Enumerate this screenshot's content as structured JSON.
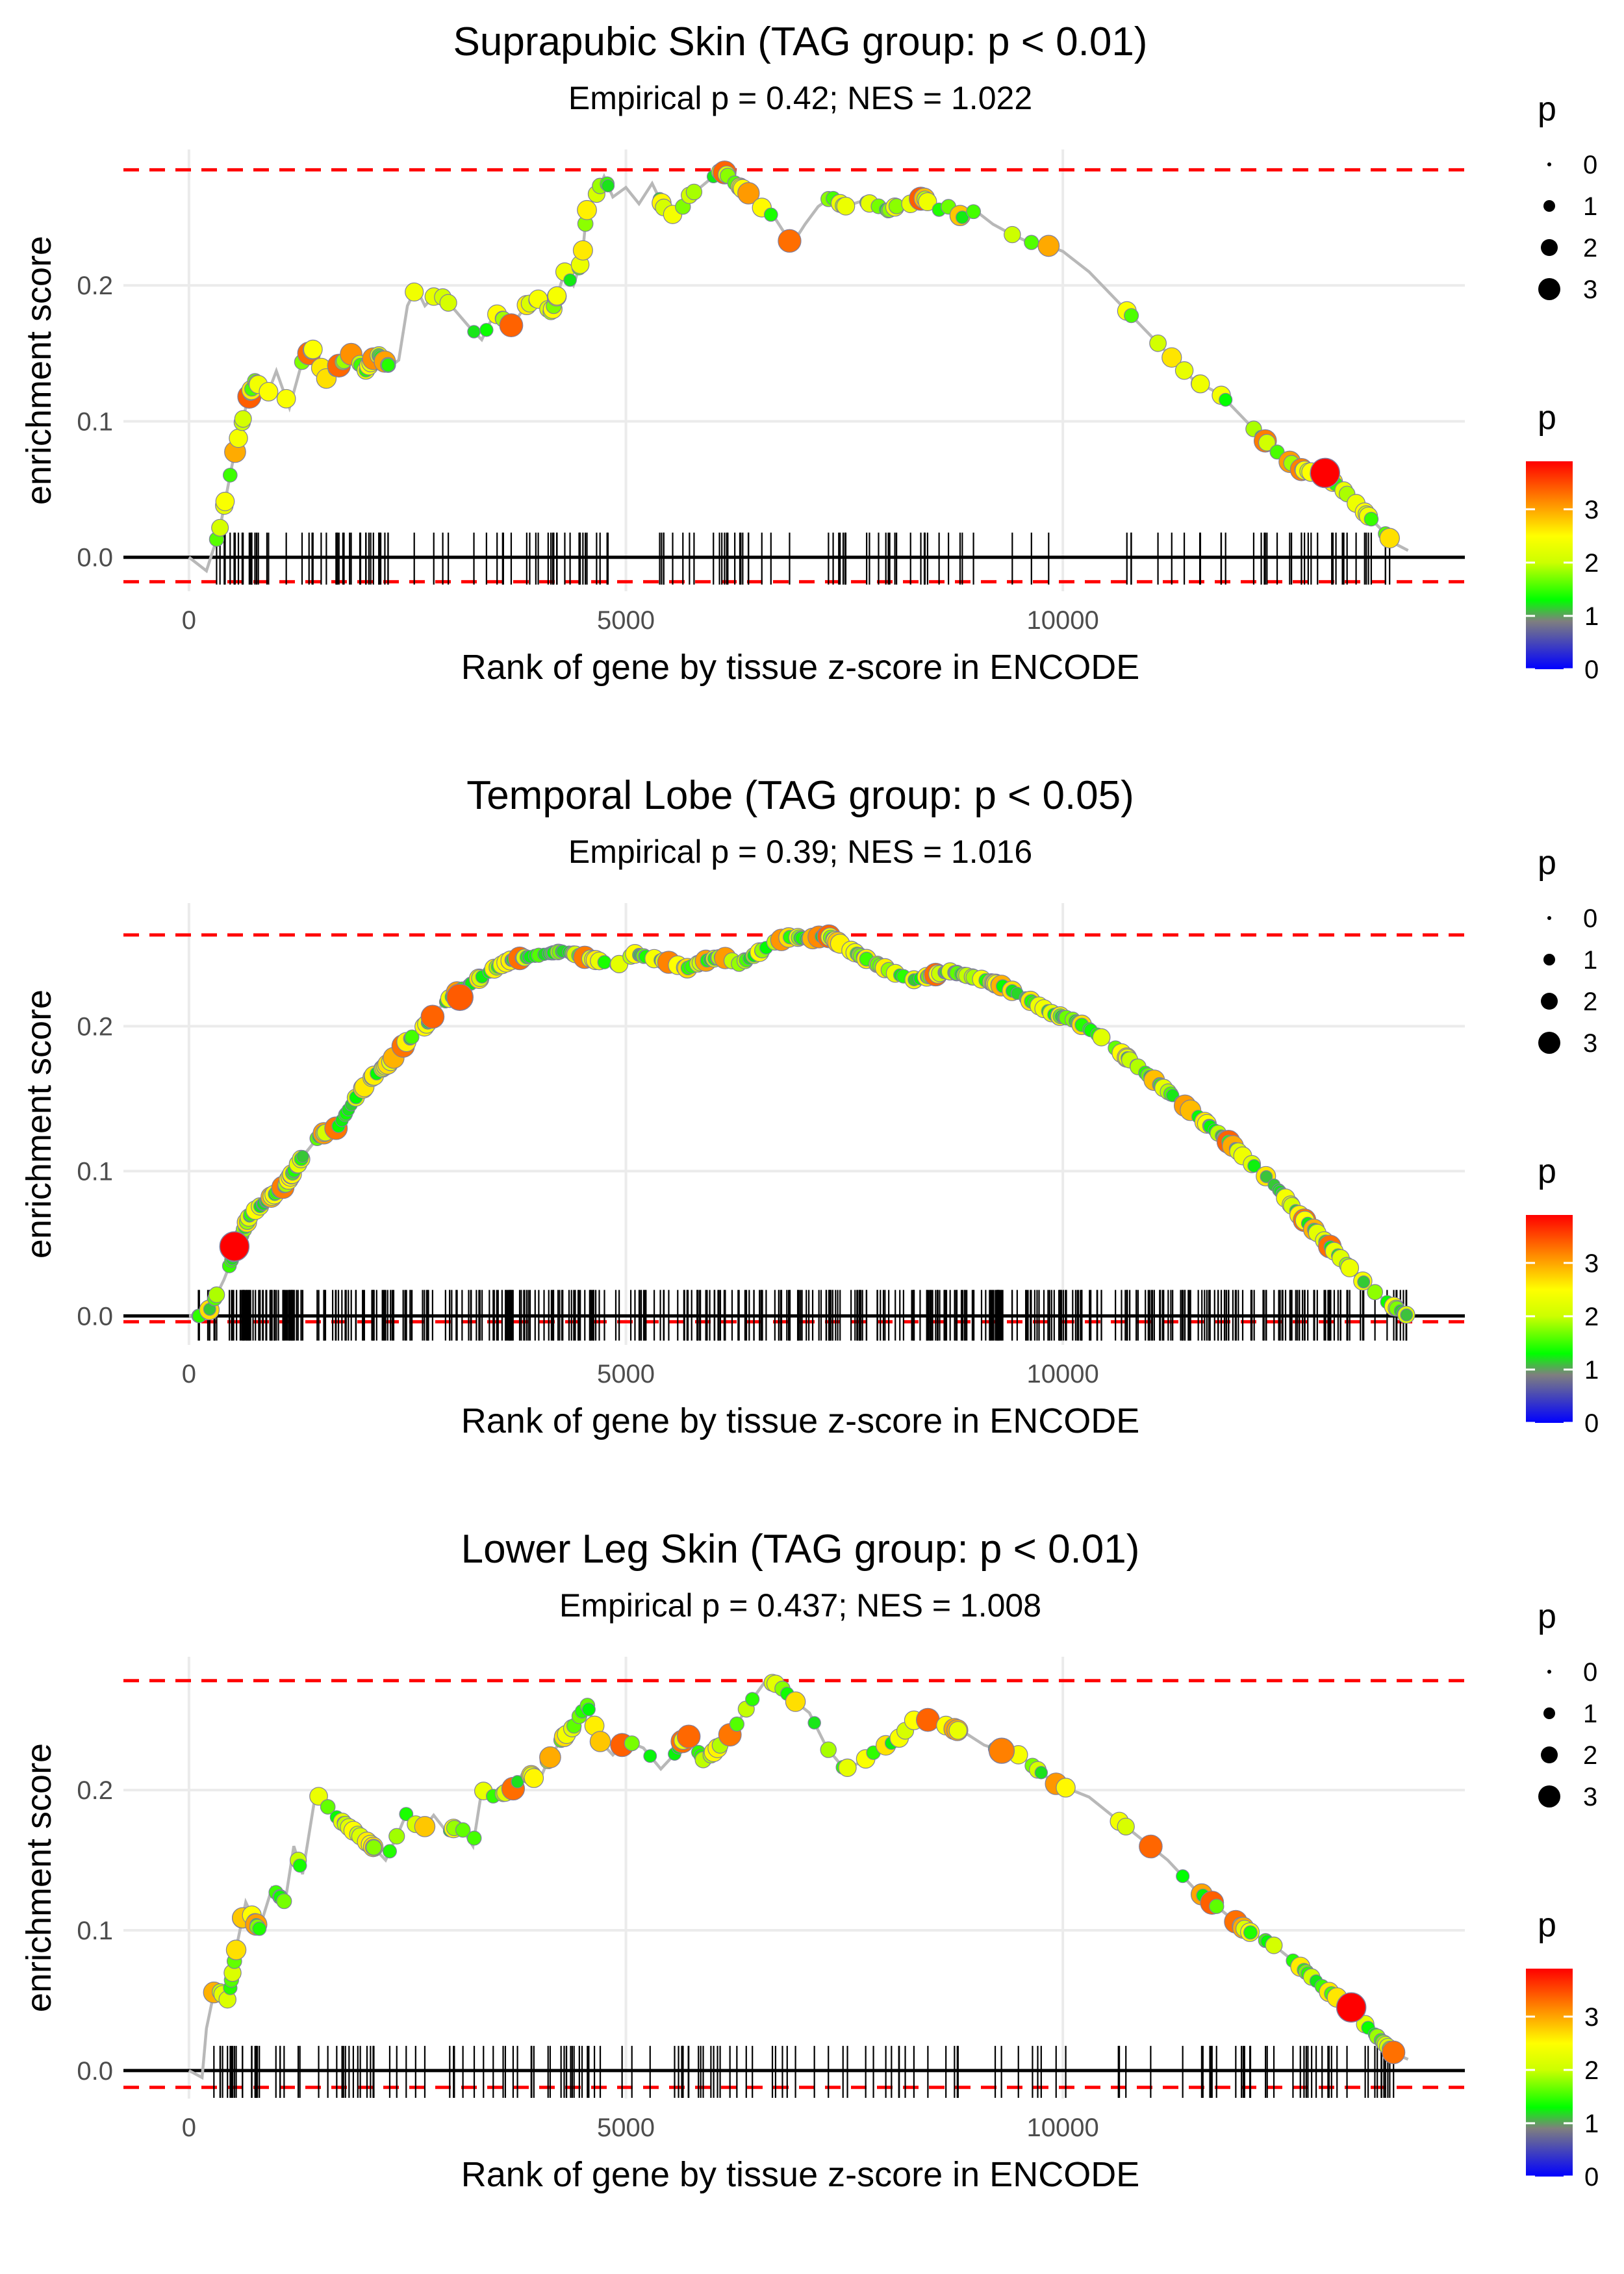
{
  "figure": {
    "x_axis_label": "Rank of gene by tissue z-score in ENCODE",
    "y_axis_label": "enrichment score",
    "legend_size_title": "p",
    "legend_color_title": "p",
    "colors": {
      "gsea_line": "#b8b8b8",
      "threshold_line": "#ff0000",
      "zero_line": "#000000",
      "rug": "#000000",
      "grid": "#ebebeb",
      "point_border": "#7f7f9f"
    },
    "color_scale": {
      "stops": [
        {
          "value": 0,
          "color": "#0000ff"
        },
        {
          "value": 0.9,
          "color": "#7f7f7f"
        },
        {
          "value": 1.3,
          "color": "#00ff00"
        },
        {
          "value": 2.0,
          "color": "#ccff00"
        },
        {
          "value": 2.5,
          "color": "#ffff00"
        },
        {
          "value": 3.2,
          "color": "#ff8000"
        },
        {
          "value": 3.9,
          "color": "#ff0000"
        }
      ],
      "ticks": [
        "0",
        "1",
        "2",
        "3"
      ]
    },
    "size_legend": [
      "0",
      "1",
      "2",
      "3"
    ]
  },
  "chart_data": [
    {
      "type": "line",
      "title": "Suprapubic Skin (TAG group: p < 0.01)",
      "subtitle": "Empirical p = 0.42; NES = 1.022",
      "xlabel": "Rank of gene by tissue z-score in ENCODE",
      "ylabel": "enrichment score",
      "xlim": [
        -750,
        14600
      ],
      "ylim": [
        -0.025,
        0.3
      ],
      "x_ticks": [
        0,
        5000,
        10000
      ],
      "x_tick_labels": [
        "0",
        "5000",
        "10000"
      ],
      "y_ticks": [
        0.0,
        0.1,
        0.2
      ],
      "y_tick_labels": [
        "0.0",
        "0.1",
        "0.2"
      ],
      "max_es": 0.285,
      "min_es": -0.018,
      "n_genes": 14000,
      "curve": [
        [
          0,
          0.0
        ],
        [
          200,
          -0.01
        ],
        [
          350,
          0.02
        ],
        [
          500,
          0.07
        ],
        [
          650,
          0.11
        ],
        [
          750,
          0.13
        ],
        [
          900,
          0.12
        ],
        [
          1000,
          0.137
        ],
        [
          1150,
          0.11
        ],
        [
          1300,
          0.145
        ],
        [
          1450,
          0.155
        ],
        [
          1550,
          0.13
        ],
        [
          1700,
          0.14
        ],
        [
          1900,
          0.152
        ],
        [
          2000,
          0.135
        ],
        [
          2150,
          0.15
        ],
        [
          2300,
          0.14
        ],
        [
          2400,
          0.145
        ],
        [
          2500,
          0.185
        ],
        [
          2600,
          0.198
        ],
        [
          2700,
          0.185
        ],
        [
          2850,
          0.195
        ],
        [
          3000,
          0.185
        ],
        [
          3200,
          0.17
        ],
        [
          3350,
          0.16
        ],
        [
          3500,
          0.18
        ],
        [
          3700,
          0.17
        ],
        [
          3850,
          0.185
        ],
        [
          4000,
          0.19
        ],
        [
          4150,
          0.18
        ],
        [
          4300,
          0.21
        ],
        [
          4400,
          0.2
        ],
        [
          4500,
          0.22
        ],
        [
          4550,
          0.255
        ],
        [
          4650,
          0.265
        ],
        [
          4750,
          0.28
        ],
        [
          4850,
          0.265
        ],
        [
          5000,
          0.272
        ],
        [
          5150,
          0.26
        ],
        [
          5300,
          0.275
        ],
        [
          5450,
          0.255
        ],
        [
          5600,
          0.25
        ],
        [
          5700,
          0.265
        ],
        [
          5850,
          0.272
        ],
        [
          6000,
          0.28
        ],
        [
          6100,
          0.285
        ],
        [
          6250,
          0.275
        ],
        [
          6400,
          0.268
        ],
        [
          6500,
          0.26
        ],
        [
          6700,
          0.25
        ],
        [
          6900,
          0.23
        ],
        [
          7050,
          0.245
        ],
        [
          7200,
          0.258
        ],
        [
          7350,
          0.265
        ],
        [
          7500,
          0.258
        ],
        [
          7700,
          0.262
        ],
        [
          7900,
          0.258
        ],
        [
          8000,
          0.255
        ],
        [
          8150,
          0.26
        ],
        [
          8300,
          0.26
        ],
        [
          8400,
          0.265
        ],
        [
          8550,
          0.255
        ],
        [
          8700,
          0.258
        ],
        [
          8850,
          0.25
        ],
        [
          9000,
          0.255
        ],
        [
          9200,
          0.245
        ],
        [
          9400,
          0.238
        ],
        [
          9600,
          0.232
        ],
        [
          9800,
          0.23
        ],
        [
          10000,
          0.225
        ],
        [
          10300,
          0.21
        ],
        [
          10600,
          0.19
        ],
        [
          10900,
          0.17
        ],
        [
          11200,
          0.15
        ],
        [
          11500,
          0.13
        ],
        [
          11800,
          0.12
        ],
        [
          12100,
          0.1
        ],
        [
          12400,
          0.08
        ],
        [
          12700,
          0.065
        ],
        [
          13000,
          0.06
        ],
        [
          13200,
          0.05
        ],
        [
          13500,
          0.03
        ],
        [
          13800,
          0.01
        ],
        [
          13950,
          0.005
        ]
      ],
      "highlighted_points": [
        {
          "x": 13000,
          "y": 0.062,
          "p": 3.9
        }
      ],
      "rug_density": "sparse",
      "rug_seed": 11
    },
    {
      "type": "line",
      "title": "Temporal Lobe (TAG group: p < 0.05)",
      "subtitle": "Empirical p = 0.39; NES = 1.016",
      "xlabel": "Rank of gene by tissue z-score in ENCODE",
      "ylabel": "enrichment score",
      "xlim": [
        -750,
        14600
      ],
      "ylim": [
        -0.02,
        0.285
      ],
      "x_ticks": [
        0,
        5000,
        10000
      ],
      "x_tick_labels": [
        "0",
        "5000",
        "10000"
      ],
      "y_ticks": [
        0.0,
        0.1,
        0.2
      ],
      "y_tick_labels": [
        "0.0",
        "0.1",
        "0.2"
      ],
      "max_es": 0.263,
      "min_es": -0.004,
      "n_genes": 14000,
      "curve": [
        [
          0,
          0.0
        ],
        [
          200,
          0.0
        ],
        [
          400,
          0.025
        ],
        [
          550,
          0.048
        ],
        [
          700,
          0.07
        ],
        [
          900,
          0.08
        ],
        [
          1100,
          0.09
        ],
        [
          1300,
          0.11
        ],
        [
          1500,
          0.125
        ],
        [
          1700,
          0.13
        ],
        [
          1900,
          0.15
        ],
        [
          2100,
          0.165
        ],
        [
          2300,
          0.175
        ],
        [
          2500,
          0.19
        ],
        [
          2700,
          0.2
        ],
        [
          2900,
          0.215
        ],
        [
          3100,
          0.225
        ],
        [
          3300,
          0.232
        ],
        [
          3500,
          0.24
        ],
        [
          3700,
          0.246
        ],
        [
          3900,
          0.248
        ],
        [
          4100,
          0.25
        ],
        [
          4300,
          0.252
        ],
        [
          4500,
          0.248
        ],
        [
          4700,
          0.245
        ],
        [
          4900,
          0.242
        ],
        [
          5100,
          0.25
        ],
        [
          5300,
          0.247
        ],
        [
          5500,
          0.244
        ],
        [
          5700,
          0.24
        ],
        [
          5900,
          0.245
        ],
        [
          6100,
          0.248
        ],
        [
          6300,
          0.243
        ],
        [
          6500,
          0.25
        ],
        [
          6700,
          0.258
        ],
        [
          6900,
          0.262
        ],
        [
          7100,
          0.26
        ],
        [
          7300,
          0.263
        ],
        [
          7500,
          0.255
        ],
        [
          7700,
          0.248
        ],
        [
          7900,
          0.242
        ],
        [
          8100,
          0.236
        ],
        [
          8300,
          0.232
        ],
        [
          8500,
          0.235
        ],
        [
          8700,
          0.238
        ],
        [
          8900,
          0.235
        ],
        [
          9100,
          0.232
        ],
        [
          9300,
          0.228
        ],
        [
          9500,
          0.222
        ],
        [
          9700,
          0.215
        ],
        [
          9900,
          0.208
        ],
        [
          10100,
          0.205
        ],
        [
          10300,
          0.198
        ],
        [
          10500,
          0.19
        ],
        [
          10700,
          0.18
        ],
        [
          10900,
          0.17
        ],
        [
          11100,
          0.16
        ],
        [
          11300,
          0.15
        ],
        [
          11500,
          0.14
        ],
        [
          11700,
          0.13
        ],
        [
          11900,
          0.12
        ],
        [
          12100,
          0.108
        ],
        [
          12300,
          0.098
        ],
        [
          12500,
          0.085
        ],
        [
          12700,
          0.07
        ],
        [
          12900,
          0.058
        ],
        [
          13100,
          0.045
        ],
        [
          13300,
          0.032
        ],
        [
          13500,
          0.02
        ],
        [
          13700,
          0.01
        ],
        [
          13950,
          0.0
        ]
      ],
      "highlighted_points": [
        {
          "x": 520,
          "y": 0.048,
          "p": 3.9
        },
        {
          "x": 3100,
          "y": 0.22,
          "p": 3.4
        }
      ],
      "rug_density": "dense",
      "rug_seed": 23
    },
    {
      "type": "line",
      "title": "Lower Leg Skin (TAG group: p < 0.01)",
      "subtitle": "Empirical p = 0.437; NES = 1.008",
      "xlabel": "Rank of gene by tissue z-score in ENCODE",
      "ylabel": "enrichment score",
      "xlim": [
        -750,
        14600
      ],
      "ylim": [
        -0.02,
        0.295
      ],
      "x_ticks": [
        0,
        5000,
        10000
      ],
      "x_tick_labels": [
        "0",
        "5000",
        "10000"
      ],
      "y_ticks": [
        0.0,
        0.1,
        0.2
      ],
      "y_tick_labels": [
        "0.0",
        "0.1",
        "0.2"
      ],
      "max_es": 0.278,
      "min_es": -0.012,
      "n_genes": 14000,
      "curve": [
        [
          0,
          0.0
        ],
        [
          150,
          -0.005
        ],
        [
          200,
          0.03
        ],
        [
          300,
          0.06
        ],
        [
          450,
          0.05
        ],
        [
          550,
          0.09
        ],
        [
          650,
          0.12
        ],
        [
          800,
          0.1
        ],
        [
          950,
          0.13
        ],
        [
          1100,
          0.12
        ],
        [
          1200,
          0.16
        ],
        [
          1300,
          0.14
        ],
        [
          1450,
          0.198
        ],
        [
          1700,
          0.18
        ],
        [
          1900,
          0.17
        ],
        [
          2100,
          0.16
        ],
        [
          2250,
          0.15
        ],
        [
          2400,
          0.17
        ],
        [
          2500,
          0.185
        ],
        [
          2650,
          0.17
        ],
        [
          2800,
          0.182
        ],
        [
          2950,
          0.17
        ],
        [
          3100,
          0.175
        ],
        [
          3250,
          0.16
        ],
        [
          3350,
          0.2
        ],
        [
          3500,
          0.195
        ],
        [
          3700,
          0.2
        ],
        [
          3850,
          0.215
        ],
        [
          4000,
          0.205
        ],
        [
          4100,
          0.22
        ],
        [
          4250,
          0.235
        ],
        [
          4400,
          0.245
        ],
        [
          4550,
          0.262
        ],
        [
          4700,
          0.235
        ],
        [
          4850,
          0.225
        ],
        [
          5000,
          0.235
        ],
        [
          5200,
          0.23
        ],
        [
          5400,
          0.215
        ],
        [
          5550,
          0.225
        ],
        [
          5700,
          0.24
        ],
        [
          5900,
          0.22
        ],
        [
          6050,
          0.23
        ],
        [
          6200,
          0.24
        ],
        [
          6300,
          0.25
        ],
        [
          6450,
          0.265
        ],
        [
          6600,
          0.278
        ],
        [
          6750,
          0.275
        ],
        [
          6900,
          0.265
        ],
        [
          7100,
          0.255
        ],
        [
          7300,
          0.23
        ],
        [
          7500,
          0.215
        ],
        [
          7700,
          0.22
        ],
        [
          7900,
          0.23
        ],
        [
          8100,
          0.235
        ],
        [
          8300,
          0.25
        ],
        [
          8500,
          0.25
        ],
        [
          8700,
          0.245
        ],
        [
          8900,
          0.24
        ],
        [
          9100,
          0.232
        ],
        [
          9300,
          0.228
        ],
        [
          9500,
          0.225
        ],
        [
          9700,
          0.215
        ],
        [
          9900,
          0.205
        ],
        [
          10100,
          0.2
        ],
        [
          10300,
          0.195
        ],
        [
          10600,
          0.18
        ],
        [
          10900,
          0.165
        ],
        [
          11200,
          0.15
        ],
        [
          11500,
          0.13
        ],
        [
          11800,
          0.115
        ],
        [
          12100,
          0.1
        ],
        [
          12400,
          0.09
        ],
        [
          12700,
          0.075
        ],
        [
          13000,
          0.058
        ],
        [
          13300,
          0.045
        ],
        [
          13500,
          0.03
        ],
        [
          13800,
          0.012
        ],
        [
          13950,
          0.008
        ]
      ],
      "highlighted_points": [
        {
          "x": 13300,
          "y": 0.045,
          "p": 3.9
        },
        {
          "x": 9300,
          "y": 0.228,
          "p": 3.2
        }
      ],
      "rug_density": "sparse",
      "rug_seed": 37
    }
  ]
}
